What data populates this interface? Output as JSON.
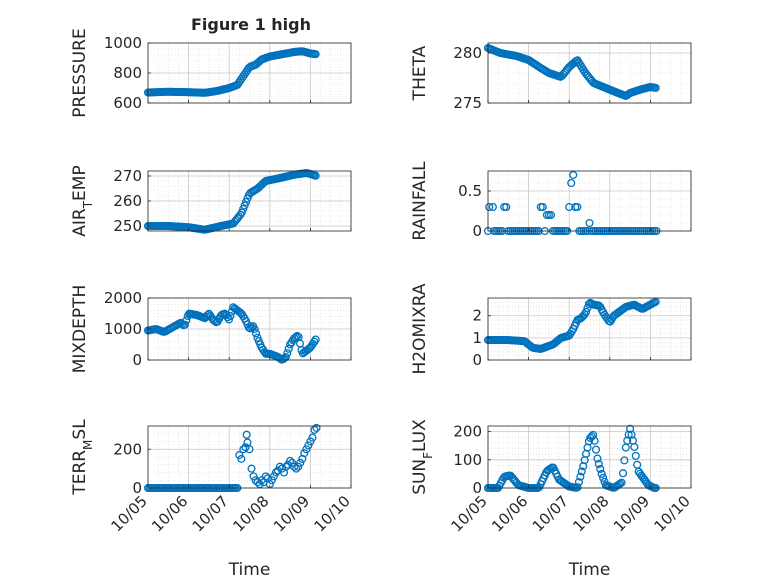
{
  "figure": {
    "title": "Figure 1 high",
    "marker_color": "#0072BD",
    "x_tick_labels": [
      "10/05",
      "10/06",
      "10/07",
      "10/08",
      "10/09",
      "10/10"
    ],
    "x_label": "Time"
  },
  "chart_data": [
    {
      "type": "scatter",
      "title": "Figure 1 high",
      "ylabel": "PRESSURE",
      "xlabel": "",
      "xlim": [
        0,
        5
      ],
      "ylim": [
        600,
        1000
      ],
      "yticks": [
        600,
        800,
        1000
      ],
      "grid": true,
      "keypoints": [
        [
          0,
          670
        ],
        [
          0.5,
          675
        ],
        [
          1,
          672
        ],
        [
          1.4,
          668
        ],
        [
          1.7,
          680
        ],
        [
          2.0,
          700
        ],
        [
          2.2,
          720
        ],
        [
          2.3,
          760
        ],
        [
          2.5,
          840
        ],
        [
          2.65,
          855
        ],
        [
          2.8,
          890
        ],
        [
          3.0,
          910
        ],
        [
          3.3,
          925
        ],
        [
          3.6,
          940
        ],
        [
          3.8,
          945
        ],
        [
          4.0,
          930
        ],
        [
          4.15,
          925
        ]
      ]
    },
    {
      "type": "scatter",
      "ylabel": "THETA",
      "xlabel": "",
      "xlim": [
        0,
        5
      ],
      "ylim": [
        275,
        281
      ],
      "yticks": [
        275,
        280
      ],
      "grid": true,
      "keypoints": [
        [
          0,
          280.5
        ],
        [
          0.3,
          280.0
        ],
        [
          0.7,
          279.7
        ],
        [
          1.0,
          279.3
        ],
        [
          1.3,
          278.5
        ],
        [
          1.5,
          278.0
        ],
        [
          1.8,
          277.6
        ],
        [
          2.0,
          278.6
        ],
        [
          2.2,
          279.3
        ],
        [
          2.4,
          278.0
        ],
        [
          2.6,
          277.0
        ],
        [
          2.9,
          276.5
        ],
        [
          3.2,
          276.0
        ],
        [
          3.4,
          275.7
        ],
        [
          3.5,
          276.0
        ],
        [
          3.8,
          276.4
        ],
        [
          4.0,
          276.6
        ],
        [
          4.15,
          276.5
        ]
      ]
    },
    {
      "type": "scatter",
      "ylabel_main": "AIR",
      "ylabel_sub": "T",
      "ylabel_rest": "EMP",
      "xlabel": "",
      "xlim": [
        0,
        5
      ],
      "ylim": [
        248,
        272
      ],
      "yticks": [
        250,
        260,
        270
      ],
      "grid": true,
      "keypoints": [
        [
          0,
          250
        ],
        [
          0.5,
          250
        ],
        [
          1.0,
          249.5
        ],
        [
          1.4,
          248.5
        ],
        [
          1.8,
          250
        ],
        [
          2.1,
          251
        ],
        [
          2.3,
          255
        ],
        [
          2.5,
          263
        ],
        [
          2.7,
          265
        ],
        [
          2.9,
          268
        ],
        [
          3.2,
          269
        ],
        [
          3.6,
          270.5
        ],
        [
          3.9,
          271.2
        ],
        [
          4.0,
          270.8
        ],
        [
          4.15,
          270
        ]
      ]
    },
    {
      "type": "scatter",
      "ylabel": "RAINFALL",
      "xlabel": "",
      "xlim": [
        0,
        5
      ],
      "ylim": [
        0,
        0.75
      ],
      "yticks": [
        0,
        0.5
      ],
      "grid": true,
      "points": [
        [
          0,
          0
        ],
        [
          0.03,
          0.3
        ],
        [
          0.12,
          0.3
        ],
        [
          0.15,
          0
        ],
        [
          0.2,
          0
        ],
        [
          0.25,
          0
        ],
        [
          0.3,
          0
        ],
        [
          0.35,
          0
        ],
        [
          0.4,
          0.3
        ],
        [
          0.45,
          0.3
        ],
        [
          0.5,
          0
        ],
        [
          0.55,
          0
        ],
        [
          0.6,
          0
        ],
        [
          0.65,
          0
        ],
        [
          0.7,
          0
        ],
        [
          0.75,
          0
        ],
        [
          0.8,
          0
        ],
        [
          0.85,
          0
        ],
        [
          0.9,
          0
        ],
        [
          0.95,
          0
        ],
        [
          1.0,
          0
        ],
        [
          1.05,
          0
        ],
        [
          1.1,
          0
        ],
        [
          1.15,
          0
        ],
        [
          1.2,
          0
        ],
        [
          1.25,
          0
        ],
        [
          1.3,
          0.3
        ],
        [
          1.35,
          0.3
        ],
        [
          1.4,
          0
        ],
        [
          1.45,
          0.2
        ],
        [
          1.5,
          0.2
        ],
        [
          1.55,
          0.2
        ],
        [
          1.6,
          0
        ],
        [
          1.65,
          0
        ],
        [
          1.7,
          0
        ],
        [
          1.75,
          0
        ],
        [
          1.8,
          0
        ],
        [
          1.85,
          0
        ],
        [
          1.9,
          0
        ],
        [
          1.95,
          0
        ],
        [
          2.0,
          0.3
        ],
        [
          2.05,
          0.6
        ],
        [
          2.1,
          0.7
        ],
        [
          2.15,
          0.3
        ],
        [
          2.2,
          0.3
        ],
        [
          2.25,
          0
        ],
        [
          2.3,
          0
        ],
        [
          2.35,
          0
        ],
        [
          2.4,
          0
        ],
        [
          2.45,
          0
        ],
        [
          2.5,
          0.1
        ],
        [
          2.55,
          0
        ],
        [
          2.6,
          0
        ],
        [
          2.65,
          0
        ],
        [
          2.7,
          0
        ],
        [
          2.75,
          0
        ],
        [
          2.8,
          0
        ],
        [
          2.85,
          0
        ],
        [
          2.9,
          0
        ],
        [
          2.95,
          0
        ],
        [
          3.0,
          0
        ],
        [
          3.05,
          0
        ],
        [
          3.1,
          0
        ],
        [
          3.15,
          0
        ],
        [
          3.2,
          0
        ],
        [
          3.25,
          0
        ],
        [
          3.3,
          0
        ],
        [
          3.35,
          0
        ],
        [
          3.4,
          0
        ],
        [
          3.45,
          0
        ],
        [
          3.5,
          0
        ],
        [
          3.55,
          0
        ],
        [
          3.6,
          0
        ],
        [
          3.65,
          0
        ],
        [
          3.7,
          0
        ],
        [
          3.75,
          0
        ],
        [
          3.8,
          0
        ],
        [
          3.85,
          0
        ],
        [
          3.9,
          0
        ],
        [
          3.95,
          0
        ],
        [
          4.0,
          0
        ],
        [
          4.05,
          0
        ],
        [
          4.1,
          0
        ],
        [
          4.15,
          0
        ]
      ]
    },
    {
      "type": "scatter",
      "ylabel": "MIXDEPTH",
      "xlabel": "",
      "xlim": [
        0,
        5
      ],
      "ylim": [
        0,
        2000
      ],
      "yticks": [
        0,
        1000,
        2000
      ],
      "grid": true,
      "keypoints": [
        [
          0,
          950
        ],
        [
          0.2,
          1000
        ],
        [
          0.4,
          900
        ],
        [
          0.6,
          1050
        ],
        [
          0.8,
          1200
        ],
        [
          0.9,
          1100
        ],
        [
          1.0,
          1500
        ],
        [
          1.2,
          1450
        ],
        [
          1.4,
          1350
        ],
        [
          1.5,
          1500
        ],
        [
          1.6,
          1300
        ],
        [
          1.7,
          1200
        ],
        [
          1.8,
          1450
        ],
        [
          1.9,
          1500
        ],
        [
          2.0,
          1300
        ],
        [
          2.1,
          1700
        ],
        [
          2.2,
          1600
        ],
        [
          2.3,
          1500
        ],
        [
          2.4,
          1300
        ],
        [
          2.5,
          1000
        ],
        [
          2.6,
          1100
        ],
        [
          2.7,
          700
        ],
        [
          2.8,
          400
        ],
        [
          2.9,
          200
        ],
        [
          3.0,
          200
        ],
        [
          3.2,
          100
        ],
        [
          3.3,
          0
        ],
        [
          3.4,
          100
        ],
        [
          3.5,
          500
        ],
        [
          3.6,
          700
        ],
        [
          3.7,
          800
        ],
        [
          3.8,
          200
        ],
        [
          3.9,
          300
        ],
        [
          4.0,
          400
        ],
        [
          4.1,
          600
        ],
        [
          4.15,
          700
        ]
      ]
    },
    {
      "type": "scatter",
      "ylabel": "H2OMIXRA",
      "xlabel": "",
      "xlim": [
        0,
        5
      ],
      "ylim": [
        0,
        2.8
      ],
      "yticks": [
        0,
        1,
        2
      ],
      "grid": true,
      "keypoints": [
        [
          0,
          0.9
        ],
        [
          0.5,
          0.9
        ],
        [
          0.9,
          0.85
        ],
        [
          1.1,
          0.55
        ],
        [
          1.3,
          0.5
        ],
        [
          1.6,
          0.7
        ],
        [
          1.8,
          1.0
        ],
        [
          2.0,
          1.1
        ],
        [
          2.1,
          1.4
        ],
        [
          2.2,
          1.8
        ],
        [
          2.3,
          1.9
        ],
        [
          2.4,
          2.1
        ],
        [
          2.5,
          2.6
        ],
        [
          2.6,
          2.5
        ],
        [
          2.75,
          2.45
        ],
        [
          2.85,
          2.1
        ],
        [
          3.0,
          1.7
        ],
        [
          3.1,
          2.0
        ],
        [
          3.25,
          2.2
        ],
        [
          3.4,
          2.4
        ],
        [
          3.6,
          2.5
        ],
        [
          3.8,
          2.3
        ],
        [
          4.0,
          2.5
        ],
        [
          4.15,
          2.65
        ]
      ]
    },
    {
      "type": "scatter",
      "ylabel_main": "TERR",
      "ylabel_sub": "M",
      "ylabel_rest": "SL",
      "xlabel": "Time",
      "xlim": [
        0,
        5
      ],
      "ylim": [
        0,
        320
      ],
      "yticks": [
        0,
        200
      ],
      "grid": true,
      "series_zero_end": 2.2,
      "scatter_points": [
        [
          2.25,
          170
        ],
        [
          2.3,
          150
        ],
        [
          2.35,
          200
        ],
        [
          2.4,
          210
        ],
        [
          2.43,
          275
        ],
        [
          2.45,
          235
        ],
        [
          2.5,
          200
        ],
        [
          2.55,
          100
        ],
        [
          2.6,
          60
        ],
        [
          2.65,
          40
        ],
        [
          2.7,
          30
        ],
        [
          2.75,
          20
        ],
        [
          2.8,
          40
        ],
        [
          2.85,
          30
        ],
        [
          2.9,
          60
        ],
        [
          2.95,
          50
        ],
        [
          3.0,
          20
        ],
        [
          3.05,
          40
        ],
        [
          3.1,
          60
        ],
        [
          3.15,
          80
        ],
        [
          3.2,
          90
        ],
        [
          3.25,
          110
        ],
        [
          3.3,
          100
        ],
        [
          3.35,
          80
        ],
        [
          3.4,
          110
        ],
        [
          3.45,
          120
        ],
        [
          3.5,
          140
        ],
        [
          3.55,
          130
        ],
        [
          3.6,
          110
        ],
        [
          3.65,
          100
        ],
        [
          3.7,
          110
        ],
        [
          3.75,
          130
        ],
        [
          3.8,
          150
        ],
        [
          3.85,
          180
        ],
        [
          3.9,
          200
        ],
        [
          3.95,
          220
        ],
        [
          4.0,
          240
        ],
        [
          4.05,
          260
        ],
        [
          4.1,
          300
        ],
        [
          4.15,
          310
        ]
      ]
    },
    {
      "type": "scatter",
      "ylabel_main": "SUN",
      "ylabel_sub": "F",
      "ylabel_rest": "LUX",
      "xlabel": "Time",
      "xlim": [
        0,
        5
      ],
      "ylim": [
        0,
        220
      ],
      "yticks": [
        0,
        100,
        200
      ],
      "grid": true,
      "keypoints": [
        [
          0,
          0
        ],
        [
          0.25,
          0
        ],
        [
          0.4,
          40
        ],
        [
          0.55,
          45
        ],
        [
          0.75,
          10
        ],
        [
          1.0,
          0
        ],
        [
          1.25,
          0
        ],
        [
          1.45,
          60
        ],
        [
          1.6,
          75
        ],
        [
          1.75,
          30
        ],
        [
          2.0,
          5
        ],
        [
          2.2,
          0
        ],
        [
          2.35,
          80
        ],
        [
          2.5,
          175
        ],
        [
          2.6,
          190
        ],
        [
          2.7,
          100
        ],
        [
          2.8,
          50
        ],
        [
          2.9,
          10
        ],
        [
          3.1,
          0
        ],
        [
          3.3,
          20
        ],
        [
          3.4,
          150
        ],
        [
          3.5,
          210
        ],
        [
          3.6,
          150
        ],
        [
          3.7,
          60
        ],
        [
          3.8,
          40
        ],
        [
          3.95,
          10
        ],
        [
          4.1,
          0
        ],
        [
          4.15,
          0
        ]
      ]
    }
  ]
}
